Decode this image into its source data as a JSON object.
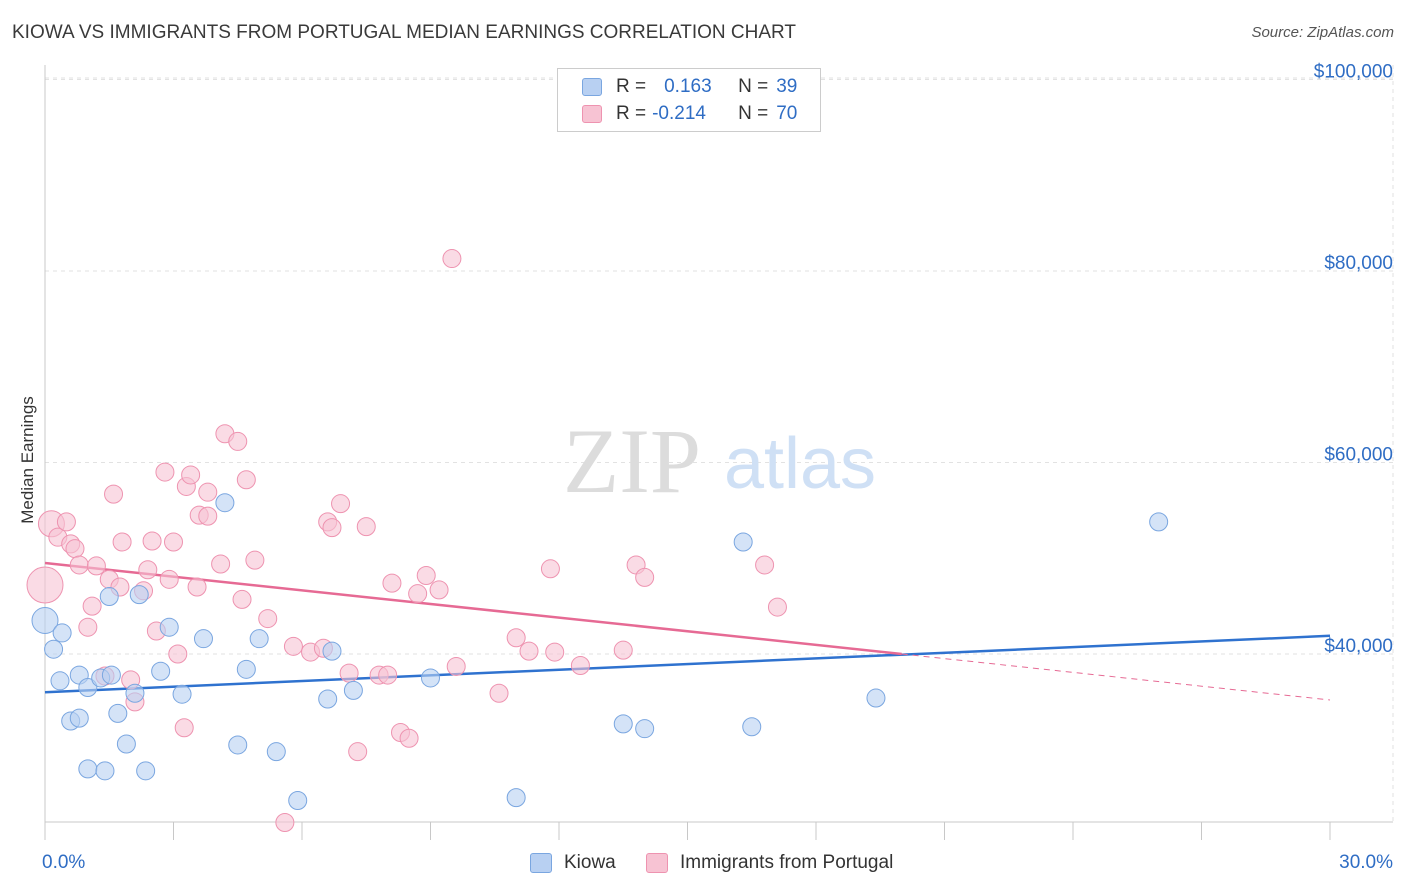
{
  "title": "KIOWA VS IMMIGRANTS FROM PORTUGAL MEDIAN EARNINGS CORRELATION CHART",
  "source": "Source: ZipAtlas.com",
  "watermark": {
    "zip": "ZIP",
    "atlas": "atlas"
  },
  "legend": {
    "rows": [
      {
        "r_label": "R =",
        "r_value": "0.163",
        "n_label": "N =",
        "n_value": "39"
      },
      {
        "r_label": "R =",
        "r_value": "-0.214",
        "n_label": "N =",
        "n_value": "70"
      }
    ]
  },
  "bottom_legend": {
    "kiowa": "Kiowa",
    "portugal": "Immigrants from Portugal"
  },
  "colors": {
    "kiowa_fill": "#b8d0f2",
    "kiowa_stroke": "#7aa6e0",
    "kiowa_line": "#2f72cf",
    "portugal_fill": "#f7c3d3",
    "portugal_stroke": "#ee93b0",
    "portugal_line": "#e66a94",
    "axis_label": "#2f6dc4"
  },
  "chart_data": {
    "type": "scatter",
    "title": "KIOWA VS IMMIGRANTS FROM PORTUGAL MEDIAN EARNINGS CORRELATION CHART",
    "xlabel": "",
    "ylabel": "Median Earnings",
    "xlim": [
      0,
      30
    ],
    "ylim": [
      18000,
      102000
    ],
    "x_tick_labels": [
      "0.0%",
      "30.0%"
    ],
    "y_ticks": [
      40000,
      60000,
      80000,
      100000
    ],
    "y_tick_labels": [
      "$40,000",
      "$60,000",
      "$80,000",
      "$100,000"
    ],
    "grid": true,
    "series": [
      {
        "name": "Kiowa",
        "points": [
          [
            0.0,
            43500
          ],
          [
            0.2,
            40500
          ],
          [
            0.4,
            42200
          ],
          [
            0.35,
            37200
          ],
          [
            0.6,
            33000
          ],
          [
            0.8,
            33300
          ],
          [
            0.8,
            37800
          ],
          [
            1.0,
            36500
          ],
          [
            1.0,
            28000
          ],
          [
            1.3,
            37500
          ],
          [
            1.4,
            27800
          ],
          [
            1.5,
            46000
          ],
          [
            1.55,
            37800
          ],
          [
            1.7,
            33800
          ],
          [
            1.9,
            30600
          ],
          [
            2.1,
            35900
          ],
          [
            2.2,
            46200
          ],
          [
            2.35,
            27800
          ],
          [
            2.7,
            38200
          ],
          [
            2.9,
            42800
          ],
          [
            3.2,
            35800
          ],
          [
            3.7,
            41600
          ],
          [
            4.2,
            55800
          ],
          [
            4.5,
            30500
          ],
          [
            4.7,
            38400
          ],
          [
            5.0,
            41600
          ],
          [
            5.4,
            29800
          ],
          [
            5.9,
            24700
          ],
          [
            6.7,
            40300
          ],
          [
            6.6,
            35300
          ],
          [
            7.2,
            36200
          ],
          [
            9.0,
            37500
          ],
          [
            11.0,
            25000
          ],
          [
            13.5,
            32700
          ],
          [
            14.0,
            32200
          ],
          [
            16.3,
            51700
          ],
          [
            16.5,
            32400
          ],
          [
            19.4,
            35400
          ],
          [
            26.0,
            53800
          ]
        ],
        "trend": {
          "x": [
            0,
            30
          ],
          "y": [
            36000,
            41900
          ]
        }
      },
      {
        "name": "Immigrants from Portugal",
        "points": [
          [
            0.0,
            47200
          ],
          [
            0.15,
            53600
          ],
          [
            0.3,
            52200
          ],
          [
            0.5,
            53800
          ],
          [
            0.6,
            51500
          ],
          [
            0.7,
            51000
          ],
          [
            0.8,
            49300
          ],
          [
            1.0,
            42800
          ],
          [
            1.1,
            45000
          ],
          [
            1.2,
            49200
          ],
          [
            1.4,
            37700
          ],
          [
            1.5,
            47800
          ],
          [
            1.6,
            56700
          ],
          [
            1.75,
            47000
          ],
          [
            1.8,
            51700
          ],
          [
            2.0,
            37300
          ],
          [
            2.1,
            35000
          ],
          [
            2.3,
            46600
          ],
          [
            2.4,
            48800
          ],
          [
            2.5,
            51800
          ],
          [
            2.6,
            42400
          ],
          [
            2.8,
            59000
          ],
          [
            2.9,
            47800
          ],
          [
            3.0,
            51700
          ],
          [
            3.1,
            40000
          ],
          [
            3.25,
            32300
          ],
          [
            3.3,
            57500
          ],
          [
            3.4,
            58700
          ],
          [
            3.55,
            47000
          ],
          [
            3.6,
            54500
          ],
          [
            3.8,
            56900
          ],
          [
            3.8,
            54400
          ],
          [
            4.1,
            49400
          ],
          [
            4.2,
            63000
          ],
          [
            4.5,
            62200
          ],
          [
            4.6,
            45700
          ],
          [
            4.7,
            58200
          ],
          [
            4.9,
            49800
          ],
          [
            5.2,
            43700
          ],
          [
            5.6,
            22400
          ],
          [
            5.8,
            40800
          ],
          [
            6.2,
            40200
          ],
          [
            6.5,
            40600
          ],
          [
            6.6,
            53800
          ],
          [
            6.7,
            53200
          ],
          [
            6.9,
            55700
          ],
          [
            7.1,
            38000
          ],
          [
            7.3,
            29800
          ],
          [
            7.5,
            53300
          ],
          [
            7.8,
            37800
          ],
          [
            8.0,
            37800
          ],
          [
            8.1,
            47400
          ],
          [
            8.3,
            31800
          ],
          [
            8.5,
            31200
          ],
          [
            8.7,
            46300
          ],
          [
            8.9,
            48200
          ],
          [
            9.2,
            46700
          ],
          [
            9.5,
            81300
          ],
          [
            9.6,
            38700
          ],
          [
            10.6,
            35900
          ],
          [
            11.0,
            41700
          ],
          [
            11.3,
            40300
          ],
          [
            11.8,
            48900
          ],
          [
            11.9,
            40200
          ],
          [
            12.5,
            38800
          ],
          [
            13.5,
            40400
          ],
          [
            13.8,
            49300
          ],
          [
            14.0,
            48000
          ],
          [
            16.8,
            49300
          ],
          [
            17.1,
            44900
          ]
        ],
        "trend": {
          "x": [
            0,
            20
          ],
          "y": [
            49500,
            40000
          ]
        },
        "trend_dashed": {
          "x": [
            20,
            30
          ],
          "y": [
            40000,
            35200
          ]
        }
      }
    ]
  }
}
